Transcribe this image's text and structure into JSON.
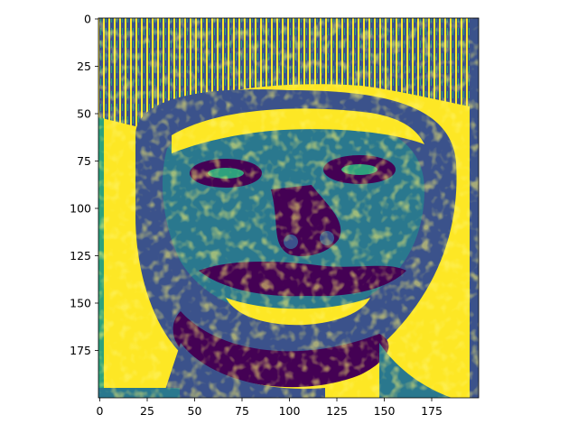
{
  "figure": {
    "type": "image",
    "colormap": "viridis",
    "description_colors": {
      "yellow": "#fde725",
      "green": "#2ea17d",
      "teal": "#2a788e",
      "blue": "#3b528b",
      "purple": "#440154"
    }
  },
  "axes": {
    "x_ticks": [
      "0",
      "25",
      "50",
      "75",
      "100",
      "125",
      "150",
      "175"
    ],
    "y_ticks": [
      "0",
      "25",
      "50",
      "75",
      "100",
      "125",
      "150",
      "175"
    ]
  }
}
